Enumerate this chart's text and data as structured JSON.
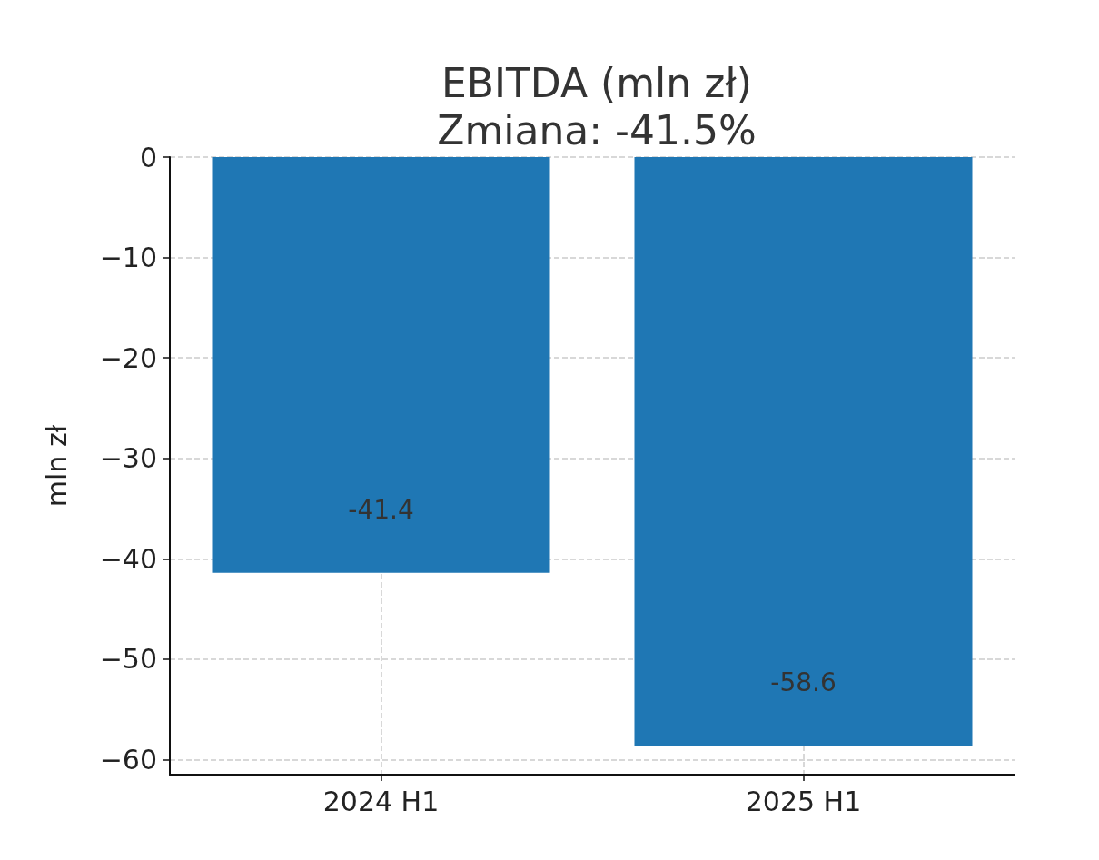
{
  "chart_data": {
    "type": "bar",
    "title": "EBITDA (mln zł)",
    "subtitle": "Zmiana: -41.5%",
    "ylabel": "mln zł",
    "categories": [
      "2024 H1",
      "2025 H1"
    ],
    "values": [
      -41.4,
      -58.6
    ],
    "color": "#1f77b4",
    "data_labels": true,
    "ylim": [
      -61.5,
      0
    ],
    "yticks": [
      {
        "value": -60,
        "label": "−60"
      },
      {
        "value": -50,
        "label": "−50"
      },
      {
        "value": -40,
        "label": "−40"
      },
      {
        "value": -30,
        "label": "−30"
      },
      {
        "value": -20,
        "label": "−20"
      },
      {
        "value": -10,
        "label": "−10"
      },
      0
    ],
    "grid": true
  }
}
